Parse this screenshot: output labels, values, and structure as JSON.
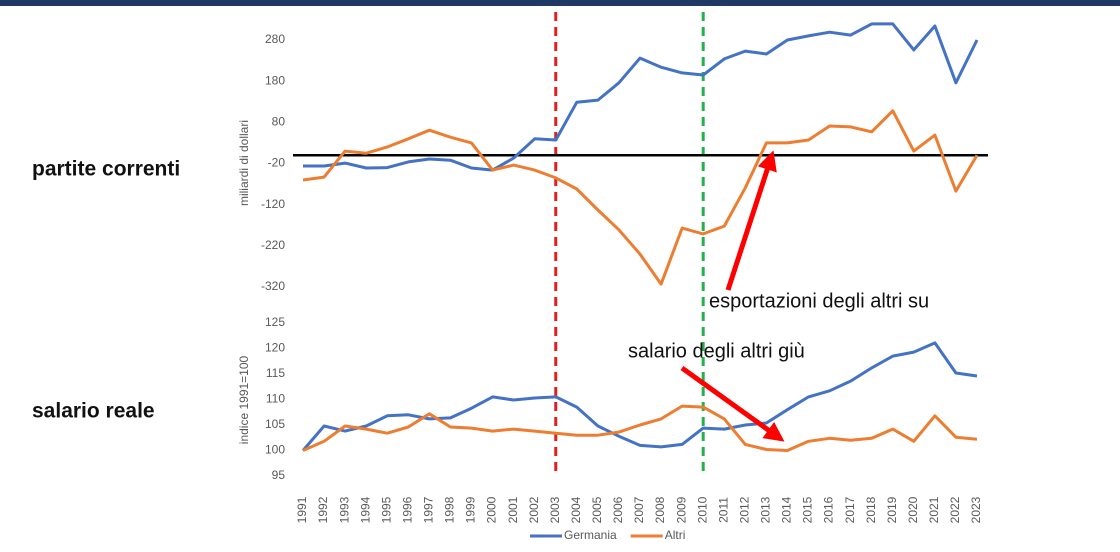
{
  "chart_data": [
    {
      "type": "line",
      "label": "partite correnti",
      "ylabel": "miliardi di dollari",
      "ylim": [
        -320,
        280
      ],
      "yticks": [
        -320,
        -220,
        -120,
        -20,
        80,
        180,
        280
      ],
      "hline": 0,
      "hline_color": "#000000",
      "annotations": [
        {
          "text": "esportazioni degli altri su"
        }
      ],
      "series": [
        {
          "color": "#4472c4",
          "values": [
            -26,
            -26,
            -19,
            -31,
            -30,
            -16,
            -9,
            -12,
            -31,
            -36,
            -7,
            40,
            37,
            129,
            134,
            176,
            236,
            214,
            200,
            195,
            234,
            253,
            246,
            280,
            290,
            299,
            292,
            319,
            319,
            256,
            314,
            176,
            280
          ]
        },
        {
          "color": "#ed7d31",
          "values": [
            -60,
            -53,
            10,
            5,
            20,
            40,
            61,
            44,
            30,
            -36,
            -24,
            -36,
            -55,
            -82,
            -133,
            -181,
            -240,
            -313,
            -177,
            -191,
            -172,
            -79,
            30,
            30,
            37,
            71,
            69,
            57,
            108,
            10,
            49,
            -87,
            0
          ]
        }
      ]
    },
    {
      "type": "line",
      "label": "salario reale",
      "ylabel": "indice 1991=100",
      "ylim": [
        95,
        125
      ],
      "yticks": [
        95,
        100,
        105,
        110,
        115,
        120,
        125
      ],
      "annotations": [
        {
          "text": "salario degli altri giù"
        }
      ],
      "categories": [
        "1991",
        "1992",
        "1993",
        "1994",
        "1995",
        "1996",
        "1997",
        "1998",
        "1999",
        "2000",
        "2001",
        "2002",
        "2003",
        "2004",
        "2005",
        "2006",
        "2007",
        "2008",
        "2009",
        "2010",
        "2011",
        "2012",
        "2013",
        "2014",
        "2015",
        "2016",
        "2017",
        "2018",
        "2019",
        "2020",
        "2021",
        "2022",
        "2023"
      ],
      "vlines": [
        {
          "x": "2003",
          "color": "#e02020"
        },
        {
          "x": "2010",
          "color": "#22b14c"
        }
      ],
      "series": [
        {
          "name": "Germania",
          "color": "#4472c4",
          "values": [
            100,
            104.8,
            103.8,
            104.8,
            106.8,
            107,
            106.2,
            106.4,
            108.3,
            110.5,
            109.9,
            110.3,
            110.5,
            108.5,
            104.8,
            102.8,
            101,
            100.7,
            101.2,
            104.4,
            104.2,
            105,
            105.4,
            108,
            110.5,
            111.7,
            113.6,
            116.2,
            118.5,
            119.3,
            121.1,
            115.2,
            114.6
          ]
        },
        {
          "name": "Altri",
          "color": "#ed7d31",
          "values": [
            100,
            101.8,
            104.8,
            104.2,
            103.4,
            104.6,
            107.2,
            104.6,
            104.4,
            103.8,
            104.2,
            103.8,
            103.4,
            103,
            103,
            103.6,
            105,
            106.2,
            108.7,
            108.5,
            106.2,
            101.2,
            100.2,
            100,
            101.8,
            102.4,
            102,
            102.4,
            104.2,
            101.8,
            106.8,
            102.6,
            102.2
          ]
        }
      ]
    }
  ]
}
